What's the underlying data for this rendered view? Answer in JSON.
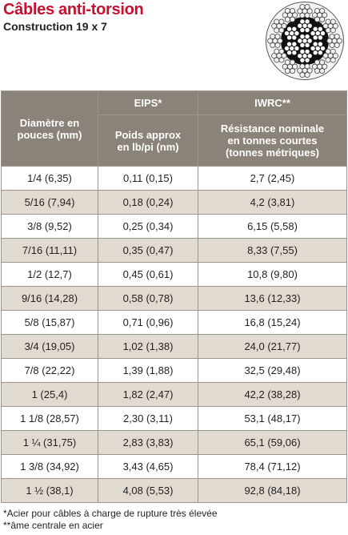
{
  "header": {
    "title": "Câbles anti-torsion",
    "subtitle": "Construction 19 x 7"
  },
  "table": {
    "group_headers": [
      "EIPS*",
      "IWRC**"
    ],
    "columns": [
      "Diamètre en pouces (mm)",
      "Poids approx en lb/pi (nm)",
      "Résistance nominale en tonnes courtes (tonnes métriques)"
    ],
    "rows": [
      [
        "1/4 (6,35)",
        "0,11 (0,15)",
        "2,7 (2,45)"
      ],
      [
        "5/16 (7,94)",
        "0,18 (0,24)",
        "4,2 (3,81)"
      ],
      [
        "3/8 (9,52)",
        "0,25 (0,34)",
        "6,15 (5,58)"
      ],
      [
        "7/16 (11,11)",
        "0,35 (0,47)",
        "8,33 (7,55)"
      ],
      [
        "1/2 (12,7)",
        "0,45 (0,61)",
        "10,8 (9,80)"
      ],
      [
        "9/16 (14,28)",
        "0,58 (0,78)",
        "13,6 (12,33)"
      ],
      [
        "5/8 (15,87)",
        "0,71 (0,96)",
        "16,8 (15,24)"
      ],
      [
        "3/4 (19,05)",
        "1,02 (1,38)",
        "24,0 (21,77)"
      ],
      [
        "7/8 (22,22)",
        "1,39 (1,88)",
        "32,5 (29,48)"
      ],
      [
        "1 (25,4)",
        "1,82 (2,47)",
        "42,2 (38,28)"
      ],
      [
        "1 1/8 (28,57)",
        "2,30 (3,11)",
        "53,1 (48,17)"
      ],
      [
        "1 ¼ (31,75)",
        "2,83 (3,83)",
        "65,1 (59,06)"
      ],
      [
        "1 3/8 (34,92)",
        "3,43 (4,65)",
        "78,4 (71,12)"
      ],
      [
        "1 ½ (38,1)",
        "4,08 (5,53)",
        "92,8 (84,18)"
      ]
    ]
  },
  "footnotes": [
    "*Acier pour câbles à charge de rupture très élevée",
    "**âme centrale en acier"
  ]
}
